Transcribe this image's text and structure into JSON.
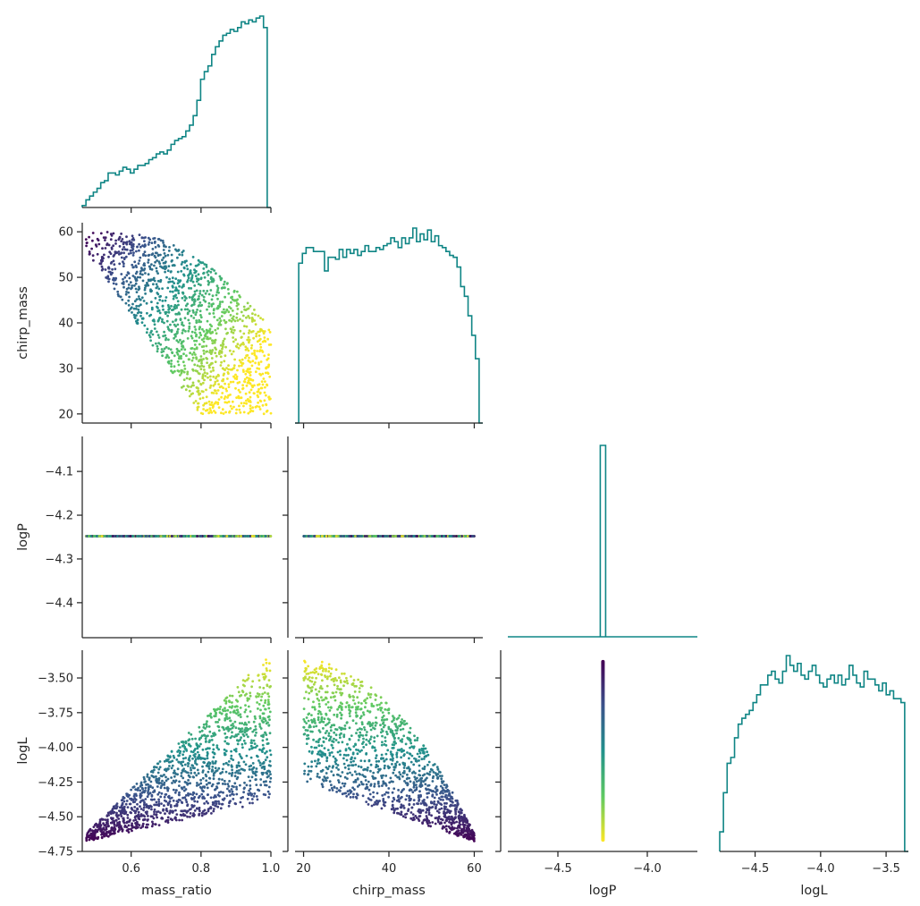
{
  "chart_data": {
    "type": "pairplot",
    "variables": [
      "mass_ratio",
      "chirp_mass",
      "logP",
      "logL"
    ],
    "colors": {
      "histogram": "#0f8585",
      "axes": "#262626",
      "colormap": [
        "#440154",
        "#3b528b",
        "#21918c",
        "#5ec962",
        "#fde725"
      ]
    },
    "grid": false,
    "panels": [
      {
        "kind": "hist",
        "x_var": "mass_ratio",
        "row": 0,
        "col": 0,
        "xlim": [
          0.47,
          1.0
        ],
        "bin_counts": [
          1,
          4,
          6,
          8,
          10,
          13,
          14,
          18,
          18,
          17,
          19,
          21,
          20,
          18,
          20,
          22,
          22,
          23,
          25,
          26,
          28,
          29,
          28,
          30,
          33,
          35,
          36,
          37,
          40,
          43,
          48,
          56,
          67,
          71,
          74,
          80,
          84,
          87,
          90,
          91,
          93,
          92,
          94,
          97,
          96,
          98,
          97,
          99,
          100,
          94,
          0
        ]
      },
      {
        "kind": "scatter",
        "x_var": "mass_ratio",
        "y_var": "chirp_mass",
        "row": 1,
        "col": 0,
        "xlim": [
          0.46,
          1.0
        ],
        "ylim": [
          18,
          62
        ],
        "yticks": [
          20,
          30,
          40,
          50,
          60
        ],
        "ylabel": "chirp_mass",
        "region": {
          "description_points": [
            [
              0.47,
              56
            ],
            [
              0.5,
              60
            ],
            [
              0.6,
              60
            ],
            [
              0.7,
              58
            ],
            [
              0.8,
              54
            ],
            [
              0.9,
              51
            ],
            [
              1.0,
              49
            ],
            [
              1.0,
              20
            ],
            [
              0.8,
              20
            ],
            [
              0.8,
              26
            ],
            [
              0.72,
              35
            ],
            [
              0.62,
              44
            ],
            [
              0.53,
              51
            ],
            [
              0.47,
              53
            ]
          ]
        }
      },
      {
        "kind": "hist",
        "x_var": "chirp_mass",
        "row": 1,
        "col": 1,
        "xlim": [
          18,
          62
        ],
        "bin_counts": [
          0,
          82,
          87,
          90,
          90,
          88,
          88,
          88,
          78,
          85,
          85,
          84,
          89,
          85,
          89,
          87,
          89,
          86,
          88,
          91,
          88,
          88,
          90,
          89,
          91,
          92,
          95,
          93,
          90,
          95,
          92,
          95,
          100,
          93,
          97,
          94,
          99,
          93,
          96,
          91,
          90,
          88,
          86,
          85,
          80,
          70,
          65,
          55,
          45,
          33,
          0
        ]
      },
      {
        "kind": "scatter",
        "x_var": "mass_ratio",
        "y_var": "logP",
        "row": 2,
        "col": 0,
        "xlim": [
          0.46,
          1.0
        ],
        "ylim": [
          -4.48,
          -4.02
        ],
        "yticks": [
          -4.1,
          -4.2,
          -4.3,
          -4.4
        ],
        "ylabel": "logP",
        "constant_y": -4.248,
        "x_range": [
          0.47,
          1.0
        ]
      },
      {
        "kind": "scatter",
        "x_var": "chirp_mass",
        "y_var": "logP",
        "row": 2,
        "col": 1,
        "xlim": [
          18,
          62
        ],
        "ylim": [
          -4.48,
          -4.02
        ],
        "constant_y": -4.248,
        "x_range": [
          20,
          60
        ]
      },
      {
        "kind": "hist",
        "x_var": "logP",
        "row": 2,
        "col": 2,
        "xlim": [
          -4.78,
          -3.72
        ],
        "spike_at": -4.248
      },
      {
        "kind": "scatter",
        "x_var": "mass_ratio",
        "y_var": "logL",
        "row": 3,
        "col": 0,
        "xlim": [
          0.46,
          1.0
        ],
        "ylim": [
          -4.75,
          -3.3
        ],
        "yticks": [
          -3.5,
          -3.75,
          -4.0,
          -4.25,
          -4.5,
          -4.75
        ],
        "ytick_labels": [
          "−3.50",
          "−3.75",
          "−4.00",
          "−4.25",
          "−4.50",
          "−4.75"
        ],
        "ylabel": "logL",
        "xticks": [
          0.6,
          0.8,
          1.0
        ],
        "xlabel": "mass_ratio"
      },
      {
        "kind": "scatter",
        "x_var": "chirp_mass",
        "y_var": "logL",
        "row": 3,
        "col": 1,
        "xlim": [
          18,
          62
        ],
        "ylim": [
          -4.75,
          -3.3
        ],
        "xticks": [
          20,
          40,
          60
        ],
        "xlabel": "chirp_mass"
      },
      {
        "kind": "scatter",
        "x_var": "logP",
        "y_var": "logL",
        "row": 3,
        "col": 2,
        "xlim": [
          -4.78,
          -3.72
        ],
        "ylim": [
          -4.75,
          -3.3
        ],
        "xticks": [
          -4.5,
          -4.0
        ],
        "xtick_labels": [
          "−4.5",
          "−4.0"
        ],
        "xlabel": "logP",
        "constant_x": -4.248,
        "y_range": [
          -4.68,
          -3.37
        ]
      },
      {
        "kind": "hist",
        "x_var": "logL",
        "row": 3,
        "col": 3,
        "xlim": [
          -4.77,
          -3.33
        ],
        "xticks": [
          -4.5,
          -4.0,
          -3.5
        ],
        "xtick_labels": [
          "−4.5",
          "−4.0",
          "−3.5"
        ],
        "xlabel": "logL",
        "bin_counts": [
          10,
          30,
          45,
          48,
          58,
          65,
          68,
          70,
          72,
          76,
          80,
          85,
          85,
          90,
          92,
          88,
          86,
          92,
          100,
          95,
          92,
          96,
          90,
          88,
          92,
          95,
          90,
          86,
          84,
          88,
          90,
          86,
          90,
          85,
          88,
          95,
          90,
          86,
          84,
          92,
          88,
          88,
          85,
          82,
          86,
          80,
          82,
          78,
          78,
          76,
          0
        ]
      }
    ],
    "mass_ratio_ticks": [
      0.6,
      0.8,
      1.0
    ],
    "mass_ratio_tick_labels": [
      "0.6",
      "0.8",
      "1.0"
    ],
    "chirp_mass_ticks": [
      20,
      40,
      60
    ],
    "chirp_mass_tick_labels": [
      "20",
      "40",
      "60"
    ],
    "chirp_mass_yticks": [
      20,
      30,
      40,
      50,
      60
    ],
    "chirp_mass_ytick_labels": [
      "20",
      "30",
      "40",
      "50",
      "60"
    ],
    "logP_yticks": [
      -4.1,
      -4.2,
      -4.3,
      -4.4
    ],
    "logP_ytick_labels": [
      "−4.1",
      "−4.2",
      "−4.3",
      "−4.4"
    ],
    "labels": {
      "mass_ratio": "mass_ratio",
      "chirp_mass": "chirp_mass",
      "logP": "logP",
      "logL": "logL"
    }
  }
}
